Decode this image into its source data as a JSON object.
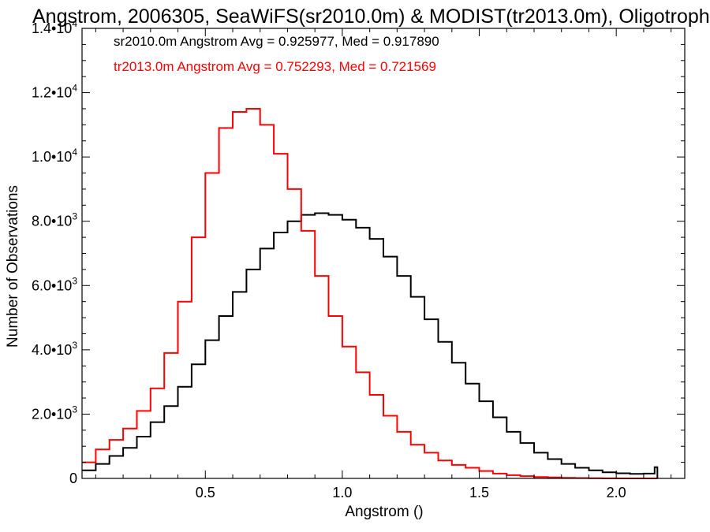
{
  "chart_data": {
    "type": "line",
    "title": "Angstrom, 2006305, SeaWiFS(sr2010.0m) & MODIST(tr2013.0m), Oligotroph",
    "xlabel": "Angstrom ()",
    "ylabel": "Number of Observations",
    "xlim": [
      0.05,
      2.25
    ],
    "ylim": [
      0,
      14000
    ],
    "x_ticks": [
      {
        "value": 0.5,
        "label": "0.5"
      },
      {
        "value": 1.0,
        "label": "1.0"
      },
      {
        "value": 1.5,
        "label": "1.5"
      },
      {
        "value": 2.0,
        "label": "2.0"
      }
    ],
    "y_ticks": [
      {
        "value": 0,
        "mant": "0",
        "exp": ""
      },
      {
        "value": 2000,
        "mant": "2.0•10",
        "exp": "3"
      },
      {
        "value": 4000,
        "mant": "4.0•10",
        "exp": "3"
      },
      {
        "value": 6000,
        "mant": "6.0•10",
        "exp": "3"
      },
      {
        "value": 8000,
        "mant": "8.0•10",
        "exp": "3"
      },
      {
        "value": 10000,
        "mant": "1.0•10",
        "exp": "4"
      },
      {
        "value": 12000,
        "mant": "1.2•10",
        "exp": "4"
      },
      {
        "value": 14000,
        "mant": "1.4•10",
        "exp": "4"
      }
    ],
    "grid": false,
    "step": true,
    "annotations": [
      {
        "text": "sr2010.0m Angstrom Avg = 0.925977, Med = 0.917890",
        "color": "#000000"
      },
      {
        "text": "tr2013.0m Angstrom Avg = 0.752293, Med = 0.721569",
        "color": "#ff0000"
      }
    ],
    "series": [
      {
        "color": "#000000",
        "x": [
          0.05,
          0.1,
          0.15,
          0.2,
          0.25,
          0.3,
          0.35,
          0.4,
          0.45,
          0.5,
          0.55,
          0.6,
          0.65,
          0.7,
          0.75,
          0.8,
          0.85,
          0.9,
          0.95,
          1.0,
          1.05,
          1.1,
          1.15,
          1.2,
          1.25,
          1.3,
          1.35,
          1.4,
          1.45,
          1.5,
          1.55,
          1.6,
          1.65,
          1.7,
          1.75,
          1.8,
          1.85,
          1.9,
          1.95,
          2.0,
          2.05,
          2.1,
          2.14,
          2.15
        ],
        "values": [
          250,
          450,
          700,
          950,
          1300,
          1750,
          2250,
          2850,
          3550,
          4300,
          5050,
          5800,
          6500,
          7150,
          7650,
          8000,
          8200,
          8250,
          8200,
          8050,
          7800,
          7450,
          6900,
          6300,
          5650,
          4950,
          4250,
          3600,
          2950,
          2400,
          1900,
          1450,
          1100,
          800,
          600,
          450,
          330,
          250,
          190,
          160,
          140,
          150,
          350,
          0
        ]
      },
      {
        "color": "#ff0000",
        "x": [
          0.05,
          0.1,
          0.15,
          0.2,
          0.25,
          0.3,
          0.35,
          0.4,
          0.45,
          0.5,
          0.55,
          0.6,
          0.65,
          0.7,
          0.75,
          0.8,
          0.85,
          0.9,
          0.95,
          1.0,
          1.05,
          1.1,
          1.15,
          1.2,
          1.25,
          1.3,
          1.35,
          1.4,
          1.45,
          1.5,
          1.55,
          1.6,
          1.65,
          1.7,
          1.75,
          1.8,
          1.85,
          1.9,
          1.95,
          2.0,
          2.05,
          2.1,
          2.15
        ],
        "values": [
          500,
          900,
          1200,
          1550,
          2100,
          2800,
          3900,
          5500,
          7500,
          9500,
          10900,
          11400,
          11500,
          11000,
          10100,
          9000,
          7700,
          6300,
          5050,
          4100,
          3300,
          2600,
          1950,
          1450,
          1050,
          800,
          560,
          420,
          330,
          230,
          150,
          100,
          70,
          45,
          30,
          20,
          12,
          6,
          3,
          1,
          0,
          0,
          0
        ]
      }
    ]
  }
}
